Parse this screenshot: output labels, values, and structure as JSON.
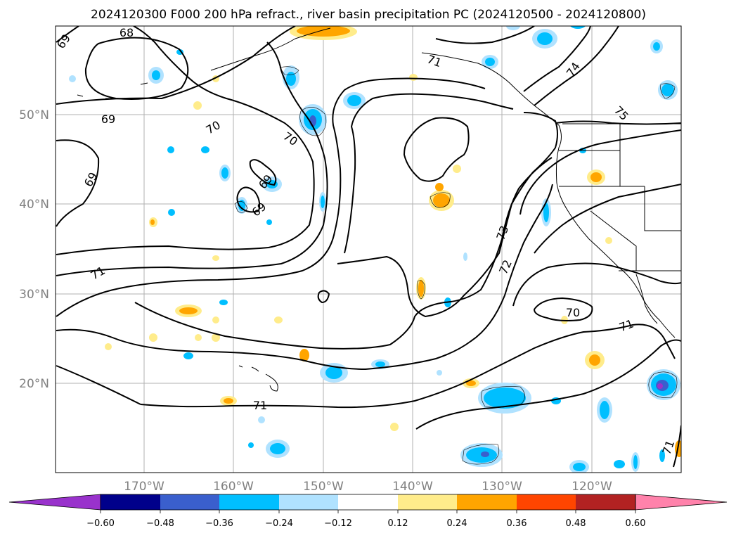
{
  "title": "2024120300 F000 200 hPa refract., river basin precipitation PC (2024120500 - 2024120800)",
  "map": {
    "lat_labels": [
      "50°N",
      "40°N",
      "30°N",
      "20°N"
    ],
    "lon_labels": [
      "170°W",
      "160°W",
      "150°W",
      "140°W",
      "130°W",
      "120°W"
    ],
    "contour_labels": [
      "68",
      "69",
      "69",
      "69",
      "69",
      "69",
      "70",
      "70",
      "70",
      "71",
      "71",
      "71",
      "71",
      "71",
      "72",
      "73",
      "74",
      "75"
    ],
    "gridlines": true
  },
  "colorbar": {
    "ticks": [
      "−0.60",
      "−0.48",
      "−0.36",
      "−0.24",
      "−0.12",
      "0.12",
      "0.24",
      "0.36",
      "0.48",
      "0.60"
    ],
    "colors": [
      "#9932cc",
      "#00008b",
      "#3a5fcd",
      "#00bfff",
      "#b0e2ff",
      "#ffffff",
      "#ffec8b",
      "#ffa500",
      "#ff4500",
      "#b22222",
      "#ff82ab"
    ],
    "extend": "both"
  }
}
